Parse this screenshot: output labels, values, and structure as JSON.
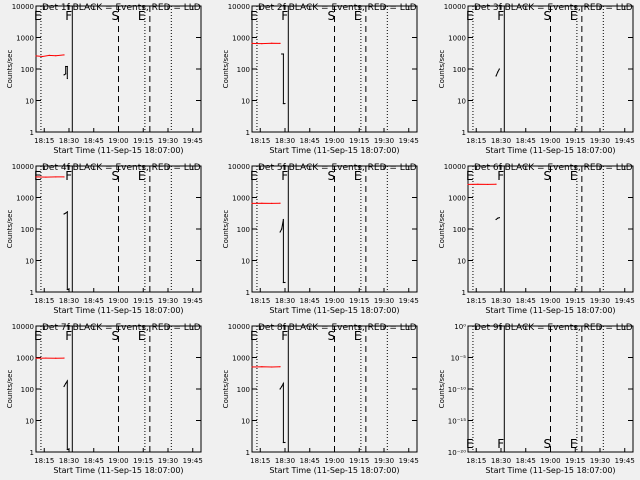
{
  "chart_data": [
    {
      "type": "line",
      "title": "Det 1f BLACK = Events, RED = LLD",
      "ylabel": "Counts/sec",
      "xlabel": "Start Time (11-Sep-15 18:07:00)",
      "x_ticks": [
        "18:15",
        "18:30",
        "18:45",
        "19:00",
        "19:15",
        "19:30",
        "19:45"
      ],
      "y_ticks": [
        "1",
        "10",
        "100",
        "1000",
        "10000"
      ],
      "ylim": [
        1,
        10000
      ],
      "y_scale": "log",
      "xlim_minutes": [
        18.167,
        19.833
      ],
      "series": [
        {
          "color": "#000000",
          "points": [
            [
              "18:27",
              65
            ],
            [
              "18:28",
              70
            ],
            [
              "18:28",
              120
            ],
            [
              "18:29",
              120
            ],
            [
              "18:29",
              50
            ]
          ]
        },
        {
          "color": "#ff0000",
          "points": [
            [
              "18:10",
              260
            ],
            [
              "18:14",
              250
            ],
            [
              "18:18",
              270
            ],
            [
              "18:22",
              265
            ],
            [
              "18:27",
              280
            ]
          ]
        }
      ],
      "markers": [
        {
          "label": "E",
          "at": "18:13",
          "line": "dotted"
        },
        {
          "label": "F",
          "at": "18:32",
          "line": "solid"
        },
        {
          "label": "S",
          "at": "19:00",
          "line": "dashed"
        },
        {
          "label": "E",
          "at": "19:16",
          "line": "dotted"
        }
      ],
      "extra_lines": [
        {
          "at": "19:19",
          "line": "dashed"
        },
        {
          "at": "19:32",
          "line": "dotted"
        }
      ]
    },
    {
      "type": "line",
      "title": "Det 2f BLACK = Events, RED = LLD",
      "ylabel": "Counts/sec",
      "xlabel": "Start Time (11-Sep-15 18:07:00)",
      "x_ticks": [
        "18:15",
        "18:30",
        "18:45",
        "19:00",
        "19:15",
        "19:30",
        "19:45"
      ],
      "y_ticks": [
        "1",
        "10",
        "100",
        "1000",
        "10000"
      ],
      "ylim": [
        1,
        10000
      ],
      "y_scale": "log",
      "series": [
        {
          "color": "#000000",
          "points": [
            [
              "18:28",
              300
            ],
            [
              "18:29",
              300
            ],
            [
              "18:29",
              8
            ],
            [
              "18:30",
              8
            ]
          ]
        },
        {
          "color": "#ff0000",
          "points": [
            [
              "18:10",
              650
            ],
            [
              "18:16",
              640
            ],
            [
              "18:22",
              660
            ],
            [
              "18:27",
              650
            ]
          ]
        }
      ],
      "markers": [
        {
          "label": "E",
          "at": "18:13",
          "line": "dotted"
        },
        {
          "label": "F",
          "at": "18:32",
          "line": "solid"
        },
        {
          "label": "S",
          "at": "19:00",
          "line": "dashed"
        },
        {
          "label": "E",
          "at": "19:16",
          "line": "dotted"
        }
      ],
      "extra_lines": [
        {
          "at": "19:19",
          "line": "dashed"
        },
        {
          "at": "19:32",
          "line": "dotted"
        }
      ]
    },
    {
      "type": "line",
      "title": "Det 3f BLACK = Events, RED = LLD",
      "ylabel": "Counts/sec",
      "xlabel": "Start Time (11-Sep-15 18:07:00)",
      "x_ticks": [
        "18:15",
        "18:30",
        "18:45",
        "19:00",
        "19:15",
        "19:30",
        "19:45"
      ],
      "y_ticks": [
        "1",
        "10",
        "100",
        "1000",
        "10000"
      ],
      "ylim": [
        1,
        10000
      ],
      "y_scale": "log",
      "series": [
        {
          "color": "#000000",
          "points": [
            [
              "18:27",
              60
            ],
            [
              "18:28",
              80
            ],
            [
              "18:29",
              100
            ]
          ]
        }
      ],
      "markers": [
        {
          "label": "E",
          "at": "18:13",
          "line": "dotted"
        },
        {
          "label": "F",
          "at": "18:32",
          "line": "solid"
        },
        {
          "label": "S",
          "at": "19:00",
          "line": "dashed"
        },
        {
          "label": "E",
          "at": "19:16",
          "line": "dotted"
        }
      ],
      "extra_lines": [
        {
          "at": "19:19",
          "line": "dashed"
        },
        {
          "at": "19:32",
          "line": "dotted"
        }
      ]
    },
    {
      "type": "line",
      "title": "Det 4f BLACK = Events, RED = LLD",
      "ylabel": "Counts/sec",
      "xlabel": "Start Time (11-Sep-15 18:07:00)",
      "x_ticks": [
        "18:15",
        "18:30",
        "18:45",
        "19:00",
        "19:15",
        "19:30",
        "19:45"
      ],
      "y_ticks": [
        "1",
        "10",
        "100",
        "1000",
        "10000"
      ],
      "ylim": [
        1,
        10000
      ],
      "y_scale": "log",
      "series": [
        {
          "color": "#000000",
          "points": [
            [
              "18:27",
              300
            ],
            [
              "18:28",
              320
            ],
            [
              "18:29",
              350
            ],
            [
              "18:29",
              1.2
            ],
            [
              "18:30",
              1.2
            ]
          ]
        },
        {
          "color": "#ff0000",
          "points": [
            [
              "18:10",
              4500
            ],
            [
              "18:16",
              4450
            ],
            [
              "18:22",
              4500
            ],
            [
              "18:27",
              4500
            ]
          ]
        }
      ],
      "markers": [
        {
          "label": "E",
          "at": "18:13",
          "line": "dotted"
        },
        {
          "label": "F",
          "at": "18:32",
          "line": "solid"
        },
        {
          "label": "S",
          "at": "19:00",
          "line": "dashed"
        },
        {
          "label": "E",
          "at": "19:16",
          "line": "dotted"
        }
      ],
      "extra_lines": [
        {
          "at": "19:19",
          "line": "dashed"
        },
        {
          "at": "19:32",
          "line": "dotted"
        }
      ]
    },
    {
      "type": "line",
      "title": "Det 5f BLACK = Events, RED = LLD",
      "ylabel": "Counts/sec",
      "xlabel": "Start Time (11-Sep-15 18:07:00)",
      "x_ticks": [
        "18:15",
        "18:30",
        "18:45",
        "19:00",
        "19:15",
        "19:30",
        "19:45"
      ],
      "y_ticks": [
        "1",
        "10",
        "100",
        "1000",
        "10000"
      ],
      "ylim": [
        1,
        10000
      ],
      "y_scale": "log",
      "series": [
        {
          "color": "#000000",
          "points": [
            [
              "18:27",
              80
            ],
            [
              "18:28",
              100
            ],
            [
              "18:29",
              200
            ],
            [
              "18:29",
              2
            ],
            [
              "18:30",
              2
            ]
          ]
        },
        {
          "color": "#ff0000",
          "points": [
            [
              "18:10",
              650
            ],
            [
              "18:16",
              660
            ],
            [
              "18:22",
              650
            ],
            [
              "18:27",
              660
            ]
          ]
        }
      ],
      "markers": [
        {
          "label": "E",
          "at": "18:13",
          "line": "dotted"
        },
        {
          "label": "F",
          "at": "18:32",
          "line": "solid"
        },
        {
          "label": "S",
          "at": "19:00",
          "line": "dashed"
        },
        {
          "label": "E",
          "at": "19:16",
          "line": "dotted"
        }
      ],
      "extra_lines": [
        {
          "at": "19:19",
          "line": "dashed"
        },
        {
          "at": "19:32",
          "line": "dotted"
        }
      ]
    },
    {
      "type": "line",
      "title": "Det 6f BLACK = Events, RED = LLD",
      "ylabel": "Counts/sec",
      "xlabel": "Start Time (11-Sep-15 18:07:00)",
      "x_ticks": [
        "18:15",
        "18:30",
        "18:45",
        "19:00",
        "19:15",
        "19:30",
        "19:45"
      ],
      "y_ticks": [
        "1",
        "10",
        "100",
        "1000",
        "10000"
      ],
      "ylim": [
        1,
        10000
      ],
      "y_scale": "log",
      "series": [
        {
          "color": "#000000",
          "points": [
            [
              "18:27",
              200
            ],
            [
              "18:28",
              220
            ],
            [
              "18:29",
              230
            ]
          ]
        },
        {
          "color": "#ff0000",
          "points": [
            [
              "18:10",
              2600
            ],
            [
              "18:16",
              2650
            ],
            [
              "18:22",
              2600
            ],
            [
              "18:27",
              2650
            ]
          ]
        }
      ],
      "markers": [
        {
          "label": "E",
          "at": "18:13",
          "line": "dotted"
        },
        {
          "label": "F",
          "at": "18:32",
          "line": "solid"
        },
        {
          "label": "S",
          "at": "19:00",
          "line": "dashed"
        },
        {
          "label": "E",
          "at": "19:16",
          "line": "dotted"
        }
      ],
      "extra_lines": [
        {
          "at": "19:19",
          "line": "dashed"
        },
        {
          "at": "19:32",
          "line": "dotted"
        }
      ]
    },
    {
      "type": "line",
      "title": "Det 7f BLACK = Events, RED = LLD",
      "ylabel": "Counts/sec",
      "xlabel": "Start Time (11-Sep-15 18:07:00)",
      "x_ticks": [
        "18:15",
        "18:30",
        "18:45",
        "19:00",
        "19:15",
        "19:30",
        "19:45"
      ],
      "y_ticks": [
        "1",
        "10",
        "100",
        "1000",
        "10000"
      ],
      "ylim": [
        1,
        10000
      ],
      "y_scale": "log",
      "series": [
        {
          "color": "#000000",
          "points": [
            [
              "18:27",
              120
            ],
            [
              "18:28",
              150
            ],
            [
              "18:29",
              180
            ],
            [
              "18:29",
              1.2
            ],
            [
              "18:30",
              1.2
            ]
          ]
        },
        {
          "color": "#ff0000",
          "points": [
            [
              "18:10",
              950
            ],
            [
              "18:16",
              960
            ],
            [
              "18:22",
              950
            ],
            [
              "18:27",
              960
            ]
          ]
        }
      ],
      "markers": [
        {
          "label": "E",
          "at": "18:13",
          "line": "dotted"
        },
        {
          "label": "F",
          "at": "18:32",
          "line": "solid"
        },
        {
          "label": "S",
          "at": "19:00",
          "line": "dashed"
        },
        {
          "label": "E",
          "at": "19:16",
          "line": "dotted"
        }
      ],
      "extra_lines": [
        {
          "at": "19:19",
          "line": "dashed"
        },
        {
          "at": "19:32",
          "line": "dotted"
        }
      ]
    },
    {
      "type": "line",
      "title": "Det 8f BLACK = Events, RED = LLD",
      "ylabel": "Counts/sec",
      "xlabel": "Start Time (11-Sep-15 18:07:00)",
      "x_ticks": [
        "18:15",
        "18:30",
        "18:45",
        "19:00",
        "19:15",
        "19:30",
        "19:45"
      ],
      "y_ticks": [
        "1",
        "10",
        "100",
        "1000",
        "10000"
      ],
      "ylim": [
        1,
        10000
      ],
      "y_scale": "log",
      "series": [
        {
          "color": "#000000",
          "points": [
            [
              "18:27",
              100
            ],
            [
              "18:28",
              120
            ],
            [
              "18:29",
              150
            ],
            [
              "18:29",
              2
            ],
            [
              "18:30",
              2
            ]
          ]
        },
        {
          "color": "#ff0000",
          "points": [
            [
              "18:10",
              500
            ],
            [
              "18:16",
              510
            ],
            [
              "18:22",
              500
            ],
            [
              "18:27",
              510
            ]
          ]
        }
      ],
      "markers": [
        {
          "label": "E",
          "at": "18:13",
          "line": "dotted"
        },
        {
          "label": "F",
          "at": "18:32",
          "line": "solid"
        },
        {
          "label": "S",
          "at": "19:00",
          "line": "dashed"
        },
        {
          "label": "E",
          "at": "19:16",
          "line": "dotted"
        }
      ],
      "extra_lines": [
        {
          "at": "19:19",
          "line": "dashed"
        },
        {
          "at": "19:32",
          "line": "dotted"
        }
      ]
    },
    {
      "type": "line",
      "title": "Det 9f BLACK = Events, RED = LLD",
      "ylabel": "Counts/sec",
      "xlabel": "Start Time (11-Sep-15 18:07:00)",
      "x_ticks": [
        "18:15",
        "18:30",
        "18:45",
        "19:00",
        "19:15",
        "19:30",
        "19:45"
      ],
      "y_ticks": [
        "10⁻²⁰",
        "10⁻¹⁵",
        "10⁻¹⁰",
        "10⁻⁵",
        "10⁰"
      ],
      "ylim": [
        1e-20,
        1
      ],
      "y_scale": "log",
      "series": [],
      "markers": [
        {
          "label": "E",
          "at": "18:13",
          "line": "dotted"
        },
        {
          "label": "F",
          "at": "18:32",
          "line": "solid"
        },
        {
          "label": "S",
          "at": "19:00",
          "line": "dashed"
        },
        {
          "label": "E",
          "at": "19:16",
          "line": "dotted"
        }
      ],
      "extra_lines": [
        {
          "at": "19:19",
          "line": "dashed"
        },
        {
          "at": "19:32",
          "line": "dotted"
        }
      ],
      "markers_at_bottom": true
    }
  ]
}
